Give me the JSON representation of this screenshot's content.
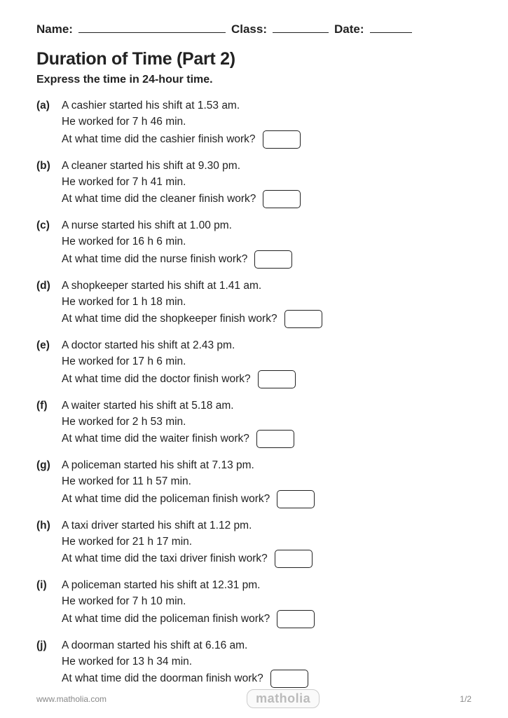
{
  "header": {
    "name_label": "Name:",
    "class_label": "Class:",
    "date_label": "Date:"
  },
  "title": "Duration of Time (Part 2)",
  "instruction": "Express the time in 24-hour time.",
  "questions": [
    {
      "label": "(a)",
      "line1": "A cashier started his shift at 1.53 am.",
      "line2": "He worked for 7 h 46 min.",
      "line3": "At what time did the cashier finish work?"
    },
    {
      "label": "(b)",
      "line1": "A cleaner started his shift at 9.30 pm.",
      "line2": "He worked for 7 h 41 min.",
      "line3": "At what time did the cleaner finish work?"
    },
    {
      "label": "(c)",
      "line1": "A nurse started his shift at 1.00 pm.",
      "line2": "He worked for 16 h 6 min.",
      "line3": "At what time did the nurse finish work?"
    },
    {
      "label": "(d)",
      "line1": "A shopkeeper started his shift at 1.41 am.",
      "line2": "He worked for 1 h 18 min.",
      "line3": "At what time did the shopkeeper finish work?"
    },
    {
      "label": "(e)",
      "line1": "A doctor started his shift at 2.43 pm.",
      "line2": "He worked for 17 h 6 min.",
      "line3": "At what time did the doctor finish work?"
    },
    {
      "label": "(f)",
      "line1": "A waiter started his shift at 5.18 am.",
      "line2": "He worked for 2 h 53 min.",
      "line3": "At what time did the waiter finish work?"
    },
    {
      "label": "(g)",
      "line1": "A policeman started his shift at 7.13 pm.",
      "line2": "He worked for 11 h 57 min.",
      "line3": "At what time did the policeman finish work?"
    },
    {
      "label": "(h)",
      "line1": "A taxi driver started his shift at 1.12 pm.",
      "line2": "He worked for 21 h 17 min.",
      "line3": "At what time did the taxi driver finish work?"
    },
    {
      "label": "(i)",
      "line1": "A policeman started his shift at 12.31 pm.",
      "line2": "He worked for 7 h 10 min.",
      "line3": "At what time did the policeman finish work?"
    },
    {
      "label": "(j)",
      "line1": "A doorman started his shift at 6.16 am.",
      "line2": "He worked for 13 h 34 min.",
      "line3": "At what time did the doorman finish work?"
    }
  ],
  "footer": {
    "url": "www.matholia.com",
    "brand": "matholia",
    "page": "1/2"
  }
}
